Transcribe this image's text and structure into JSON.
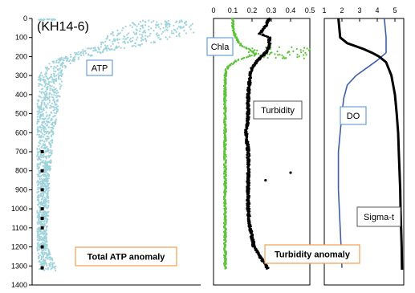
{
  "chart_data": [
    {
      "type": "scatter",
      "title": "(KH14-6)",
      "y_axis": {
        "ylim": [
          1400,
          0
        ],
        "ticks": [
          0,
          100,
          200,
          300,
          400,
          500,
          600,
          700,
          800,
          900,
          1000,
          1100,
          1200,
          1300,
          1400
        ]
      },
      "labels": {
        "series": "ATP",
        "annotation": "Total ATP anomaly"
      },
      "colors": {
        "atp": "#9fd3dc",
        "anomaly_markers": "#000000",
        "box_atp": "#6aa0d8",
        "box_anomaly": "#f0a050"
      },
      "atp_envelope": [
        {
          "depth": 10,
          "lo": 0.62,
          "hi": 0.92
        },
        {
          "depth": 30,
          "lo": 0.56,
          "hi": 0.98
        },
        {
          "depth": 50,
          "lo": 0.52,
          "hi": 1.0
        },
        {
          "depth": 70,
          "lo": 0.48,
          "hi": 0.97
        },
        {
          "depth": 90,
          "lo": 0.45,
          "hi": 0.92
        },
        {
          "depth": 110,
          "lo": 0.42,
          "hi": 0.83
        },
        {
          "depth": 130,
          "lo": 0.39,
          "hi": 0.72
        },
        {
          "depth": 150,
          "lo": 0.34,
          "hi": 0.6
        },
        {
          "depth": 170,
          "lo": 0.28,
          "hi": 0.48
        },
        {
          "depth": 190,
          "lo": 0.22,
          "hi": 0.38
        },
        {
          "depth": 210,
          "lo": 0.16,
          "hi": 0.3
        },
        {
          "depth": 230,
          "lo": 0.11,
          "hi": 0.24
        },
        {
          "depth": 260,
          "lo": 0.07,
          "hi": 0.2
        },
        {
          "depth": 300,
          "lo": 0.04,
          "hi": 0.18
        },
        {
          "depth": 400,
          "lo": 0.03,
          "hi": 0.17
        },
        {
          "depth": 500,
          "lo": 0.03,
          "hi": 0.15
        },
        {
          "depth": 600,
          "lo": 0.03,
          "hi": 0.13
        },
        {
          "depth": 700,
          "lo": 0.03,
          "hi": 0.12
        },
        {
          "depth": 800,
          "lo": 0.03,
          "hi": 0.11
        },
        {
          "depth": 900,
          "lo": 0.03,
          "hi": 0.1
        },
        {
          "depth": 1000,
          "lo": 0.03,
          "hi": 0.1
        },
        {
          "depth": 1100,
          "lo": 0.03,
          "hi": 0.09
        },
        {
          "depth": 1200,
          "lo": 0.03,
          "hi": 0.09
        },
        {
          "depth": 1300,
          "lo": 0.04,
          "hi": 0.14
        }
      ],
      "anomaly_depths": [
        700,
        800,
        900,
        1000,
        1050,
        1100,
        1200,
        1310
      ]
    },
    {
      "type": "scatter",
      "x_axis": {
        "xlim": [
          0,
          0.5
        ],
        "ticks": [
          "0",
          "0.1",
          "0.2",
          "0.3",
          "0.4",
          "0.5"
        ]
      },
      "labels": {
        "chla": "Chla",
        "turbidity": "Turbidity",
        "annotation": "Turbidity anomaly"
      },
      "colors": {
        "chla": "#5cc23a",
        "turbidity": "#000000",
        "box_chla": "#6aa0d8",
        "box_turbidity": "#555555",
        "box_anomaly": "#f0a050"
      },
      "chla": [
        {
          "depth": 0,
          "x": 0.1
        },
        {
          "depth": 40,
          "x": 0.1
        },
        {
          "depth": 90,
          "x": 0.11
        },
        {
          "depth": 140,
          "x": 0.14
        },
        {
          "depth": 170,
          "x": 0.2
        },
        {
          "depth": 190,
          "x": 0.22
        },
        {
          "depth": 220,
          "x": 0.12
        },
        {
          "depth": 260,
          "x": 0.07
        },
        {
          "depth": 300,
          "x": 0.06
        },
        {
          "depth": 400,
          "x": 0.06
        },
        {
          "depth": 600,
          "x": 0.06
        },
        {
          "depth": 800,
          "x": 0.06
        },
        {
          "depth": 1000,
          "x": 0.06
        },
        {
          "depth": 1200,
          "x": 0.06
        },
        {
          "depth": 1310,
          "x": 0.06
        }
      ],
      "turbidity": [
        {
          "depth": 0,
          "x": 0.29
        },
        {
          "depth": 40,
          "x": 0.27
        },
        {
          "depth": 80,
          "x": 0.24
        },
        {
          "depth": 100,
          "x": 0.29
        },
        {
          "depth": 140,
          "x": 0.29
        },
        {
          "depth": 180,
          "x": 0.27
        },
        {
          "depth": 220,
          "x": 0.23
        },
        {
          "depth": 260,
          "x": 0.2
        },
        {
          "depth": 300,
          "x": 0.19
        },
        {
          "depth": 400,
          "x": 0.18
        },
        {
          "depth": 500,
          "x": 0.18
        },
        {
          "depth": 600,
          "x": 0.17
        },
        {
          "depth": 700,
          "x": 0.18
        },
        {
          "depth": 800,
          "x": 0.18
        },
        {
          "depth": 900,
          "x": 0.18
        },
        {
          "depth": 1000,
          "x": 0.18
        },
        {
          "depth": 1100,
          "x": 0.19
        },
        {
          "depth": 1200,
          "x": 0.21
        },
        {
          "depth": 1280,
          "x": 0.26
        },
        {
          "depth": 1310,
          "x": 0.28
        }
      ],
      "outliers": [
        {
          "depth": 810,
          "x": 0.4
        },
        {
          "depth": 850,
          "x": 0.27
        }
      ]
    },
    {
      "type": "line",
      "x_axis": {
        "xlim": [
          1,
          5.5
        ],
        "ticks": [
          "1",
          "2",
          "3",
          "4",
          "5"
        ]
      },
      "labels": {
        "do": "DO",
        "sigma": "Sigma-t"
      },
      "colors": {
        "do": "#3e5fa8",
        "sigma": "#000000",
        "box_do": "#6aa0d8",
        "box_sigma": "#555555"
      },
      "do_profile": [
        {
          "depth": 0,
          "x": 4.4
        },
        {
          "depth": 100,
          "x": 4.5
        },
        {
          "depth": 180,
          "x": 4.5
        },
        {
          "depth": 220,
          "x": 4.0
        },
        {
          "depth": 260,
          "x": 3.4
        },
        {
          "depth": 300,
          "x": 2.8
        },
        {
          "depth": 350,
          "x": 2.3
        },
        {
          "depth": 420,
          "x": 2.1
        },
        {
          "depth": 500,
          "x": 2.0
        },
        {
          "depth": 600,
          "x": 1.9
        },
        {
          "depth": 700,
          "x": 1.8
        },
        {
          "depth": 800,
          "x": 1.8
        },
        {
          "depth": 900,
          "x": 1.8
        },
        {
          "depth": 1000,
          "x": 1.85
        },
        {
          "depth": 1100,
          "x": 1.9
        },
        {
          "depth": 1200,
          "x": 1.95
        },
        {
          "depth": 1310,
          "x": 2.0
        }
      ],
      "sigma_profile": [
        {
          "depth": 0,
          "x": 1.8
        },
        {
          "depth": 100,
          "x": 1.9
        },
        {
          "depth": 130,
          "x": 2.3
        },
        {
          "depth": 160,
          "x": 3.2
        },
        {
          "depth": 180,
          "x": 3.7
        },
        {
          "depth": 200,
          "x": 4.1
        },
        {
          "depth": 230,
          "x": 4.5
        },
        {
          "depth": 300,
          "x": 4.8
        },
        {
          "depth": 400,
          "x": 5.0
        },
        {
          "depth": 500,
          "x": 5.1
        },
        {
          "depth": 600,
          "x": 5.18
        },
        {
          "depth": 700,
          "x": 5.22
        },
        {
          "depth": 800,
          "x": 5.26
        },
        {
          "depth": 900,
          "x": 5.3
        },
        {
          "depth": 1000,
          "x": 5.32
        },
        {
          "depth": 1100,
          "x": 5.35
        },
        {
          "depth": 1200,
          "x": 5.38
        },
        {
          "depth": 1320,
          "x": 5.4
        }
      ]
    }
  ]
}
